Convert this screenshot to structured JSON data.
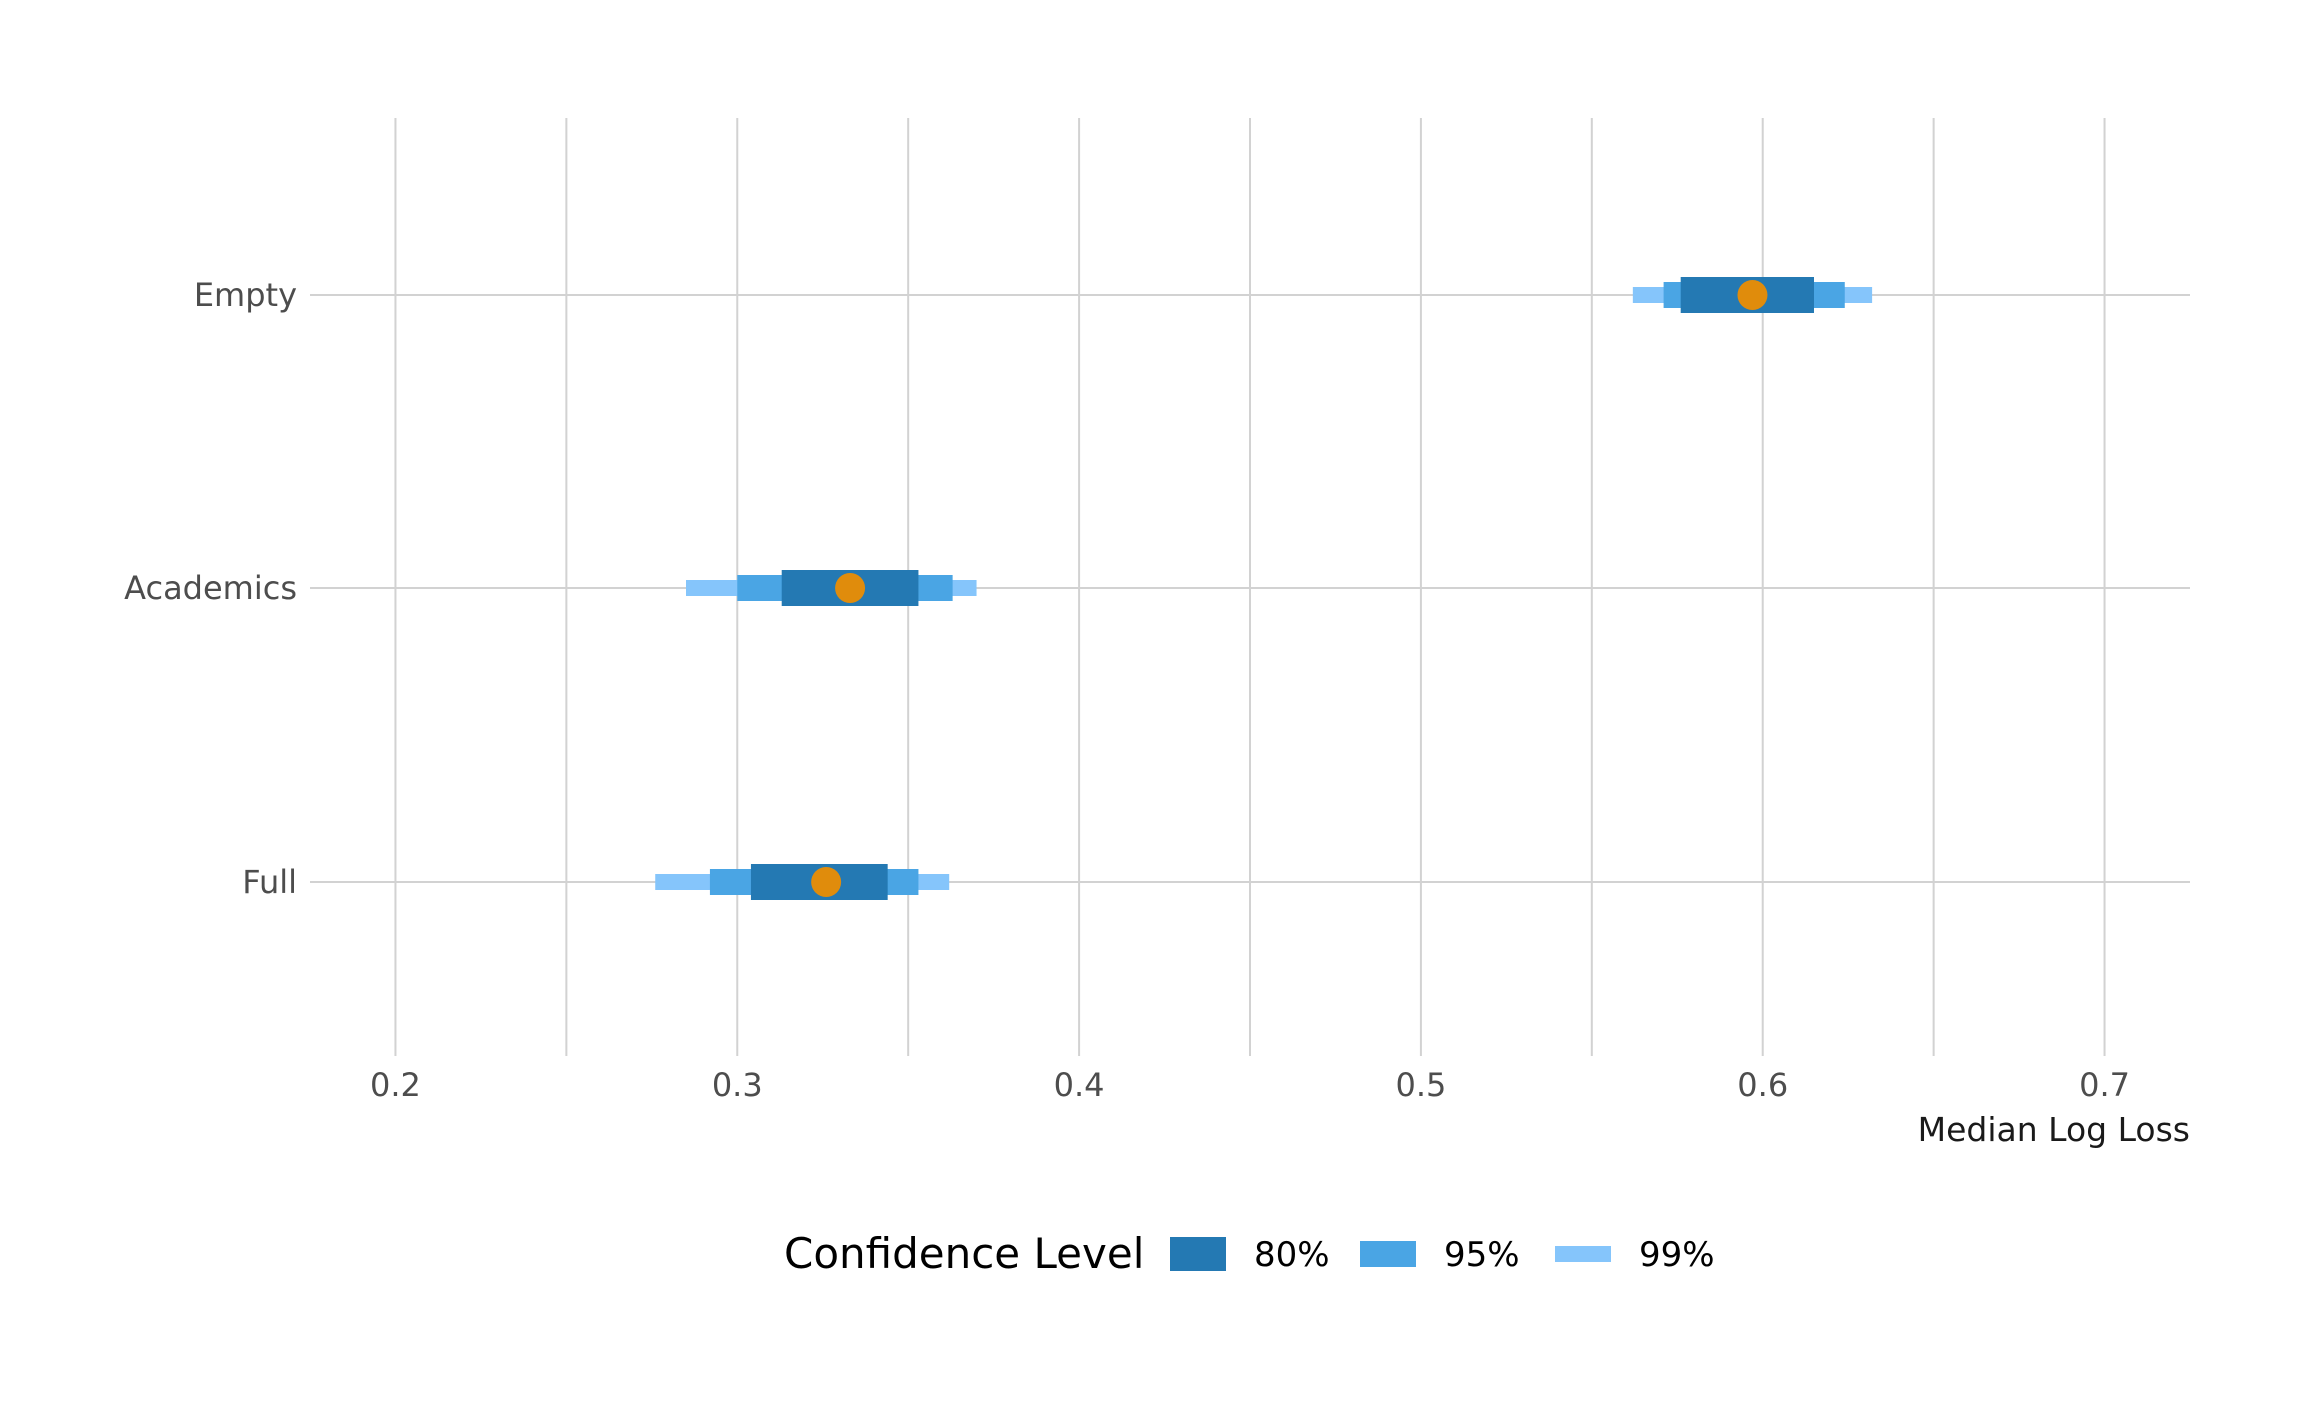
{
  "chart_data": {
    "type": "interval",
    "title": "",
    "xlabel": "Median Log Loss",
    "ylabel": "",
    "xlim": [
      0.175,
      0.725
    ],
    "x_ticks": [
      {
        "value": 0.2,
        "label": "0.2"
      },
      {
        "value": 0.3,
        "label": "0.3"
      },
      {
        "value": 0.4,
        "label": "0.4"
      },
      {
        "value": 0.5,
        "label": "0.5"
      },
      {
        "value": 0.6,
        "label": "0.6"
      },
      {
        "value": 0.7,
        "label": "0.7"
      }
    ],
    "x_minor_ticks": [
      0.25,
      0.35,
      0.45,
      0.55,
      0.65
    ],
    "grid": true,
    "categories": [
      "Empty",
      "Academics",
      "Full"
    ],
    "rows": [
      {
        "name": "Empty",
        "point": 0.597,
        "ci80": [
          0.576,
          0.615
        ],
        "ci95": [
          0.571,
          0.624
        ],
        "ci99": [
          0.562,
          0.632
        ]
      },
      {
        "name": "Academics",
        "point": 0.333,
        "ci80": [
          0.313,
          0.353
        ],
        "ci95": [
          0.3,
          0.363
        ],
        "ci99": [
          0.285,
          0.37
        ]
      },
      {
        "name": "Full",
        "point": 0.326,
        "ci80": [
          0.304,
          0.344
        ],
        "ci95": [
          0.292,
          0.353
        ],
        "ci99": [
          0.276,
          0.362
        ]
      }
    ],
    "legend": {
      "title": "Confidence Level",
      "placement": "bottom",
      "items": [
        {
          "key": "ci80",
          "label": "80%",
          "color": "#2479b3"
        },
        {
          "key": "ci95",
          "label": "95%",
          "color": "#4aa5e4"
        },
        {
          "key": "ci99",
          "label": "99%",
          "color": "#85c5fb"
        }
      ]
    },
    "point_color": "#e08c0c"
  }
}
